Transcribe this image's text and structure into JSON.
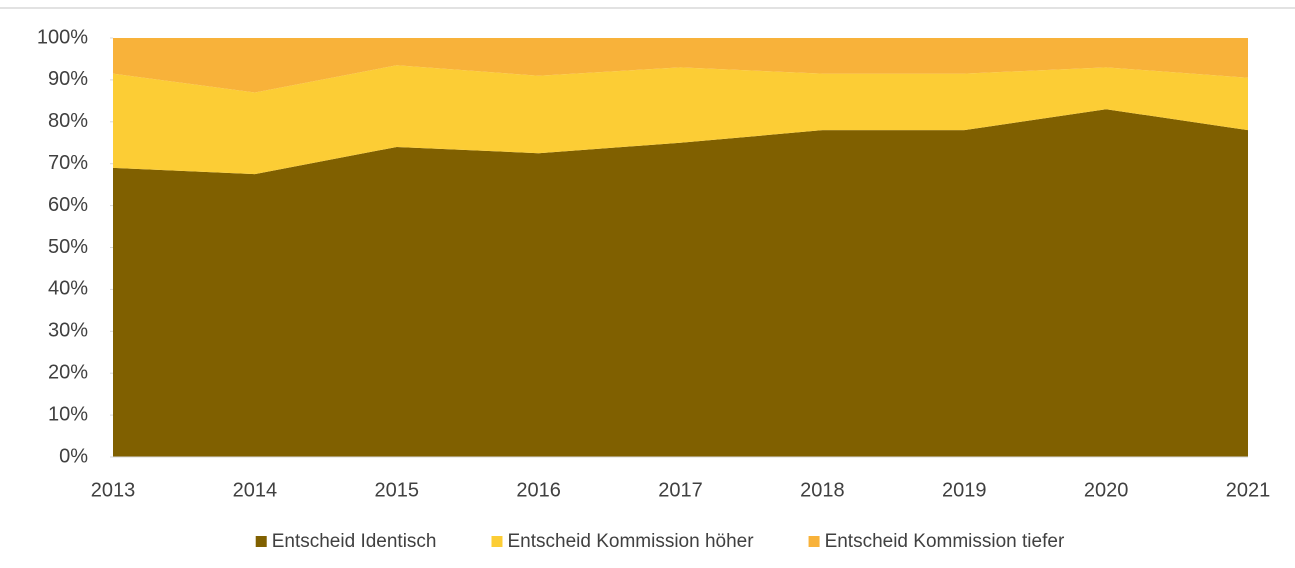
{
  "chart_data": {
    "type": "area_stacked",
    "categories": [
      "2013",
      "2014",
      "2015",
      "2016",
      "2017",
      "2018",
      "2019",
      "2020",
      "2021"
    ],
    "series": [
      {
        "name": "Entscheid Identisch",
        "color": "#806000",
        "values": [
          69,
          67.5,
          74,
          72.5,
          75,
          78,
          78,
          83,
          78
        ]
      },
      {
        "name": "Entscheid Kommission höher",
        "color": "#fccd35",
        "values": [
          22.5,
          19.5,
          19.5,
          18.5,
          18,
          13.5,
          13.5,
          10,
          12.5
        ]
      },
      {
        "name": "Entscheid Kommission tiefer",
        "color": "#f8b23a",
        "values": [
          8.5,
          13,
          6.5,
          9,
          7,
          8.5,
          8.5,
          7,
          9.5
        ]
      }
    ],
    "ylim": [
      0,
      100
    ],
    "yticks": [
      {
        "value": 0,
        "label": "0%"
      },
      {
        "value": 10,
        "label": "10%"
      },
      {
        "value": 20,
        "label": "20%"
      },
      {
        "value": 30,
        "label": "30%"
      },
      {
        "value": 40,
        "label": "40%"
      },
      {
        "value": 50,
        "label": "50%"
      },
      {
        "value": 60,
        "label": "60%"
      },
      {
        "value": 70,
        "label": "70%"
      },
      {
        "value": 80,
        "label": "80%"
      },
      {
        "value": 90,
        "label": "90%"
      },
      {
        "value": 100,
        "label": "100%"
      }
    ],
    "legend": "bottom"
  }
}
